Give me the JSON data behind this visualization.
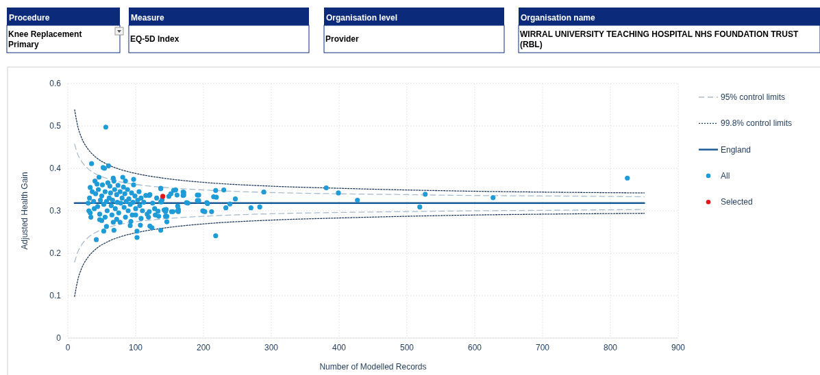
{
  "chart_data": {
    "type": "scatter",
    "xlabel": "Number of Modelled Records",
    "ylabel": "Adjusted Health Gain",
    "annotations": [
      "Procedure",
      "Knee Replacement Primary",
      "Measure",
      "EQ-5D Index",
      "Organisation level",
      "Provider",
      "Organisation name",
      "WIRRAL UNIVERSITY TEACHING HOSPITAL NHS FOUNDATION TRUST (RBL)"
    ],
    "xlim": [
      0,
      900
    ],
    "xticks": [
      0,
      100,
      200,
      300,
      400,
      500,
      600,
      700,
      800,
      900
    ],
    "ylim": [
      0,
      0.6
    ],
    "yticks": [
      0,
      0.1,
      0.2,
      0.3,
      0.4,
      0.5,
      0.6
    ],
    "grid": true,
    "legend": "right",
    "series": [
      {
        "name": "95% control limits",
        "type": "line",
        "line_style": "dashed",
        "color": "#a9bccd",
        "x": [
          10,
          15,
          20,
          30,
          40,
          60,
          80,
          100,
          150,
          200,
          300,
          400,
          500,
          600,
          700,
          850
        ],
        "values": [
          0.457,
          0.432,
          0.417,
          0.399,
          0.388,
          0.375,
          0.367,
          0.362,
          0.354,
          0.349,
          0.343,
          0.34,
          0.338,
          0.336,
          0.335,
          0.333
        ]
      },
      {
        "type": "line",
        "line_style": "dashed",
        "color": "#a9bccd",
        "x": [
          10,
          15,
          20,
          30,
          40,
          60,
          80,
          100,
          150,
          200,
          300,
          400,
          500,
          600,
          700,
          850
        ],
        "values": [
          0.179,
          0.204,
          0.219,
          0.237,
          0.248,
          0.261,
          0.269,
          0.274,
          0.282,
          0.287,
          0.293,
          0.296,
          0.298,
          0.3,
          0.301,
          0.303
        ]
      },
      {
        "name": "99.8% control limits",
        "type": "line",
        "line_style": "dotted",
        "color": "#1f3a5a",
        "x": [
          10,
          15,
          20,
          30,
          40,
          60,
          80,
          100,
          150,
          200,
          300,
          400,
          500,
          600,
          700,
          850
        ],
        "values": [
          0.538,
          0.497,
          0.473,
          0.445,
          0.428,
          0.408,
          0.396,
          0.388,
          0.375,
          0.367,
          0.358,
          0.353,
          0.349,
          0.346,
          0.344,
          0.342
        ]
      },
      {
        "type": "line",
        "line_style": "dotted",
        "color": "#1f3a5a",
        "x": [
          10,
          15,
          20,
          30,
          40,
          60,
          80,
          100,
          150,
          200,
          300,
          400,
          500,
          600,
          700,
          850
        ],
        "values": [
          0.098,
          0.139,
          0.163,
          0.191,
          0.208,
          0.228,
          0.24,
          0.248,
          0.261,
          0.269,
          0.278,
          0.283,
          0.287,
          0.29,
          0.292,
          0.294
        ]
      },
      {
        "name": "England",
        "type": "line",
        "line_style": "solid",
        "color": "#1a5a96",
        "x": [
          10,
          850
        ],
        "values": [
          0.318,
          0.318
        ]
      },
      {
        "name": "All",
        "marker": "circle",
        "color": "#1f9bd7",
        "x": [
          56,
          35,
          52,
          60,
          54,
          46,
          67,
          81,
          97,
          40,
          59,
          68,
          85,
          33,
          43,
          51,
          62,
          74,
          82,
          97,
          137,
          149,
          152,
          159,
          171,
          171,
          193,
          193,
          121,
          139,
          138,
          30,
          32,
          36,
          38,
          41,
          44,
          45,
          48,
          50,
          53,
          55,
          57,
          58,
          61,
          63,
          64,
          66,
          69,
          70,
          72,
          73,
          75,
          77,
          78,
          80,
          83,
          84,
          86,
          88,
          89,
          90,
          92,
          94,
          95,
          96,
          99,
          100,
          103,
          105,
          106,
          108,
          110,
          112,
          115,
          117,
          125,
          128,
          131,
          31,
          34,
          39,
          47,
          55,
          65,
          72,
          85,
          93,
          100,
          33,
          47,
          50,
          57,
          53,
          42,
          67,
          68,
          77,
          92,
          102,
          102,
          107,
          108,
          119,
          120,
          129,
          134,
          137,
          145,
          146,
          146,
          155,
          163,
          163,
          175,
          199,
          205,
          124,
          120,
          137,
          137,
          156,
          161,
          170,
          170,
          177,
          191,
          191,
          200,
          202,
          206,
          212,
          218,
          215,
          219,
          218,
          230,
          233,
          239,
          247,
          270,
          283,
          289,
          381,
          399,
          427,
          519,
          527,
          627,
          825,
          121,
          144,
          144,
          153,
          162,
          162,
          142,
          133
        ],
        "values": [
          0.497,
          0.411,
          0.402,
          0.406,
          0.4,
          0.379,
          0.377,
          0.379,
          0.374,
          0.37,
          0.366,
          0.37,
          0.37,
          0.355,
          0.363,
          0.361,
          0.358,
          0.36,
          0.356,
          0.361,
          0.353,
          0.334,
          0.34,
          0.349,
          0.343,
          0.337,
          0.337,
          0.324,
          0.338,
          0.326,
          0.321,
          0.318,
          0.33,
          0.345,
          0.322,
          0.34,
          0.31,
          0.35,
          0.325,
          0.335,
          0.315,
          0.345,
          0.322,
          0.3,
          0.33,
          0.342,
          0.312,
          0.325,
          0.35,
          0.305,
          0.338,
          0.32,
          0.295,
          0.345,
          0.318,
          0.33,
          0.308,
          0.34,
          0.322,
          0.35,
          0.3,
          0.328,
          0.315,
          0.342,
          0.29,
          0.32,
          0.335,
          0.305,
          0.325,
          0.345,
          0.312,
          0.33,
          0.3,
          0.32,
          0.336,
          0.292,
          0.318,
          0.305,
          0.33,
          0.3,
          0.285,
          0.305,
          0.292,
          0.285,
          0.29,
          0.28,
          0.285,
          0.275,
          0.29,
          0.295,
          0.279,
          0.277,
          0.263,
          0.252,
          0.232,
          0.273,
          0.254,
          0.273,
          0.265,
          0.252,
          0.237,
          0.266,
          0.282,
          0.285,
          0.298,
          0.29,
          0.287,
          0.254,
          0.303,
          0.287,
          0.274,
          0.298,
          0.303,
          0.298,
          0.319,
          0.3,
          0.319,
          0.26,
          0.336,
          0.352,
          0.321,
          0.348,
          0.337,
          0.344,
          0.336,
          0.318,
          0.337,
          0.324,
          0.299,
          0.298,
          0.317,
          0.298,
          0.348,
          0.333,
          0.332,
          0.241,
          0.349,
          0.307,
          0.316,
          0.328,
          0.307,
          0.309,
          0.344,
          0.354,
          0.342,
          0.325,
          0.309,
          0.339,
          0.331,
          0.377,
          0.264,
          0.287,
          0.298,
          0.298,
          0.3,
          0.311,
          0.302,
          0.299
        ]
      },
      {
        "name": "Selected",
        "marker": "circle",
        "color": "#e8141b",
        "x": [
          140
        ],
        "values": [
          0.334
        ]
      }
    ]
  }
}
